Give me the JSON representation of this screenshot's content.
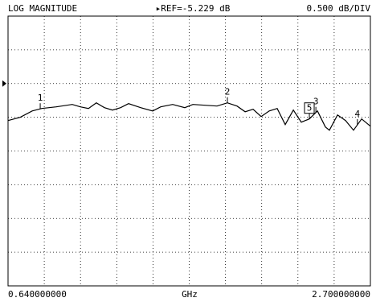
{
  "chart_data": {
    "type": "line",
    "title": "LOG MAGNITUDE",
    "ref_label": "▸REF=-5.229 dB",
    "ref_value": -5.229,
    "scale_label": "0.500 dB/DIV",
    "x_unit": "GHz",
    "xlim": [
      0.64,
      2.7
    ],
    "ylim": [
      -8.229,
      -4.229
    ],
    "xticks": [
      {
        "value": 0.64,
        "label": "0.640000000"
      },
      {
        "value": 2.7,
        "label": "2.700000000"
      }
    ],
    "grid_divisions": {
      "x": 10,
      "y": 8
    },
    "color": "#000000",
    "x": [
      0.64,
      0.709,
      0.777,
      0.832,
      0.914,
      1.005,
      1.051,
      1.097,
      1.142,
      1.188,
      1.234,
      1.28,
      1.325,
      1.394,
      1.462,
      1.508,
      1.576,
      1.645,
      1.691,
      1.759,
      1.828,
      1.887,
      1.942,
      1.988,
      2.033,
      2.079,
      2.125,
      2.17,
      2.216,
      2.262,
      2.307,
      2.353,
      2.399,
      2.444,
      2.467,
      2.513,
      2.559,
      2.604,
      2.65,
      2.7
    ],
    "values": [
      -5.778,
      -5.73,
      -5.635,
      -5.599,
      -5.575,
      -5.539,
      -5.575,
      -5.599,
      -5.515,
      -5.587,
      -5.623,
      -5.587,
      -5.527,
      -5.587,
      -5.635,
      -5.575,
      -5.539,
      -5.587,
      -5.539,
      -5.551,
      -5.563,
      -5.515,
      -5.563,
      -5.647,
      -5.611,
      -5.718,
      -5.635,
      -5.599,
      -5.837,
      -5.623,
      -5.802,
      -5.754,
      -5.635,
      -5.873,
      -5.921,
      -5.694,
      -5.778,
      -5.921,
      -5.754,
      -5.861
    ],
    "markers": [
      {
        "label": "1",
        "x": 0.823
      },
      {
        "label": "2",
        "x": 1.887
      },
      {
        "label": "3",
        "x": 2.39
      },
      {
        "label": "4",
        "x": 2.626
      },
      {
        "label": "5",
        "x": 2.353,
        "boxed": true
      }
    ]
  }
}
